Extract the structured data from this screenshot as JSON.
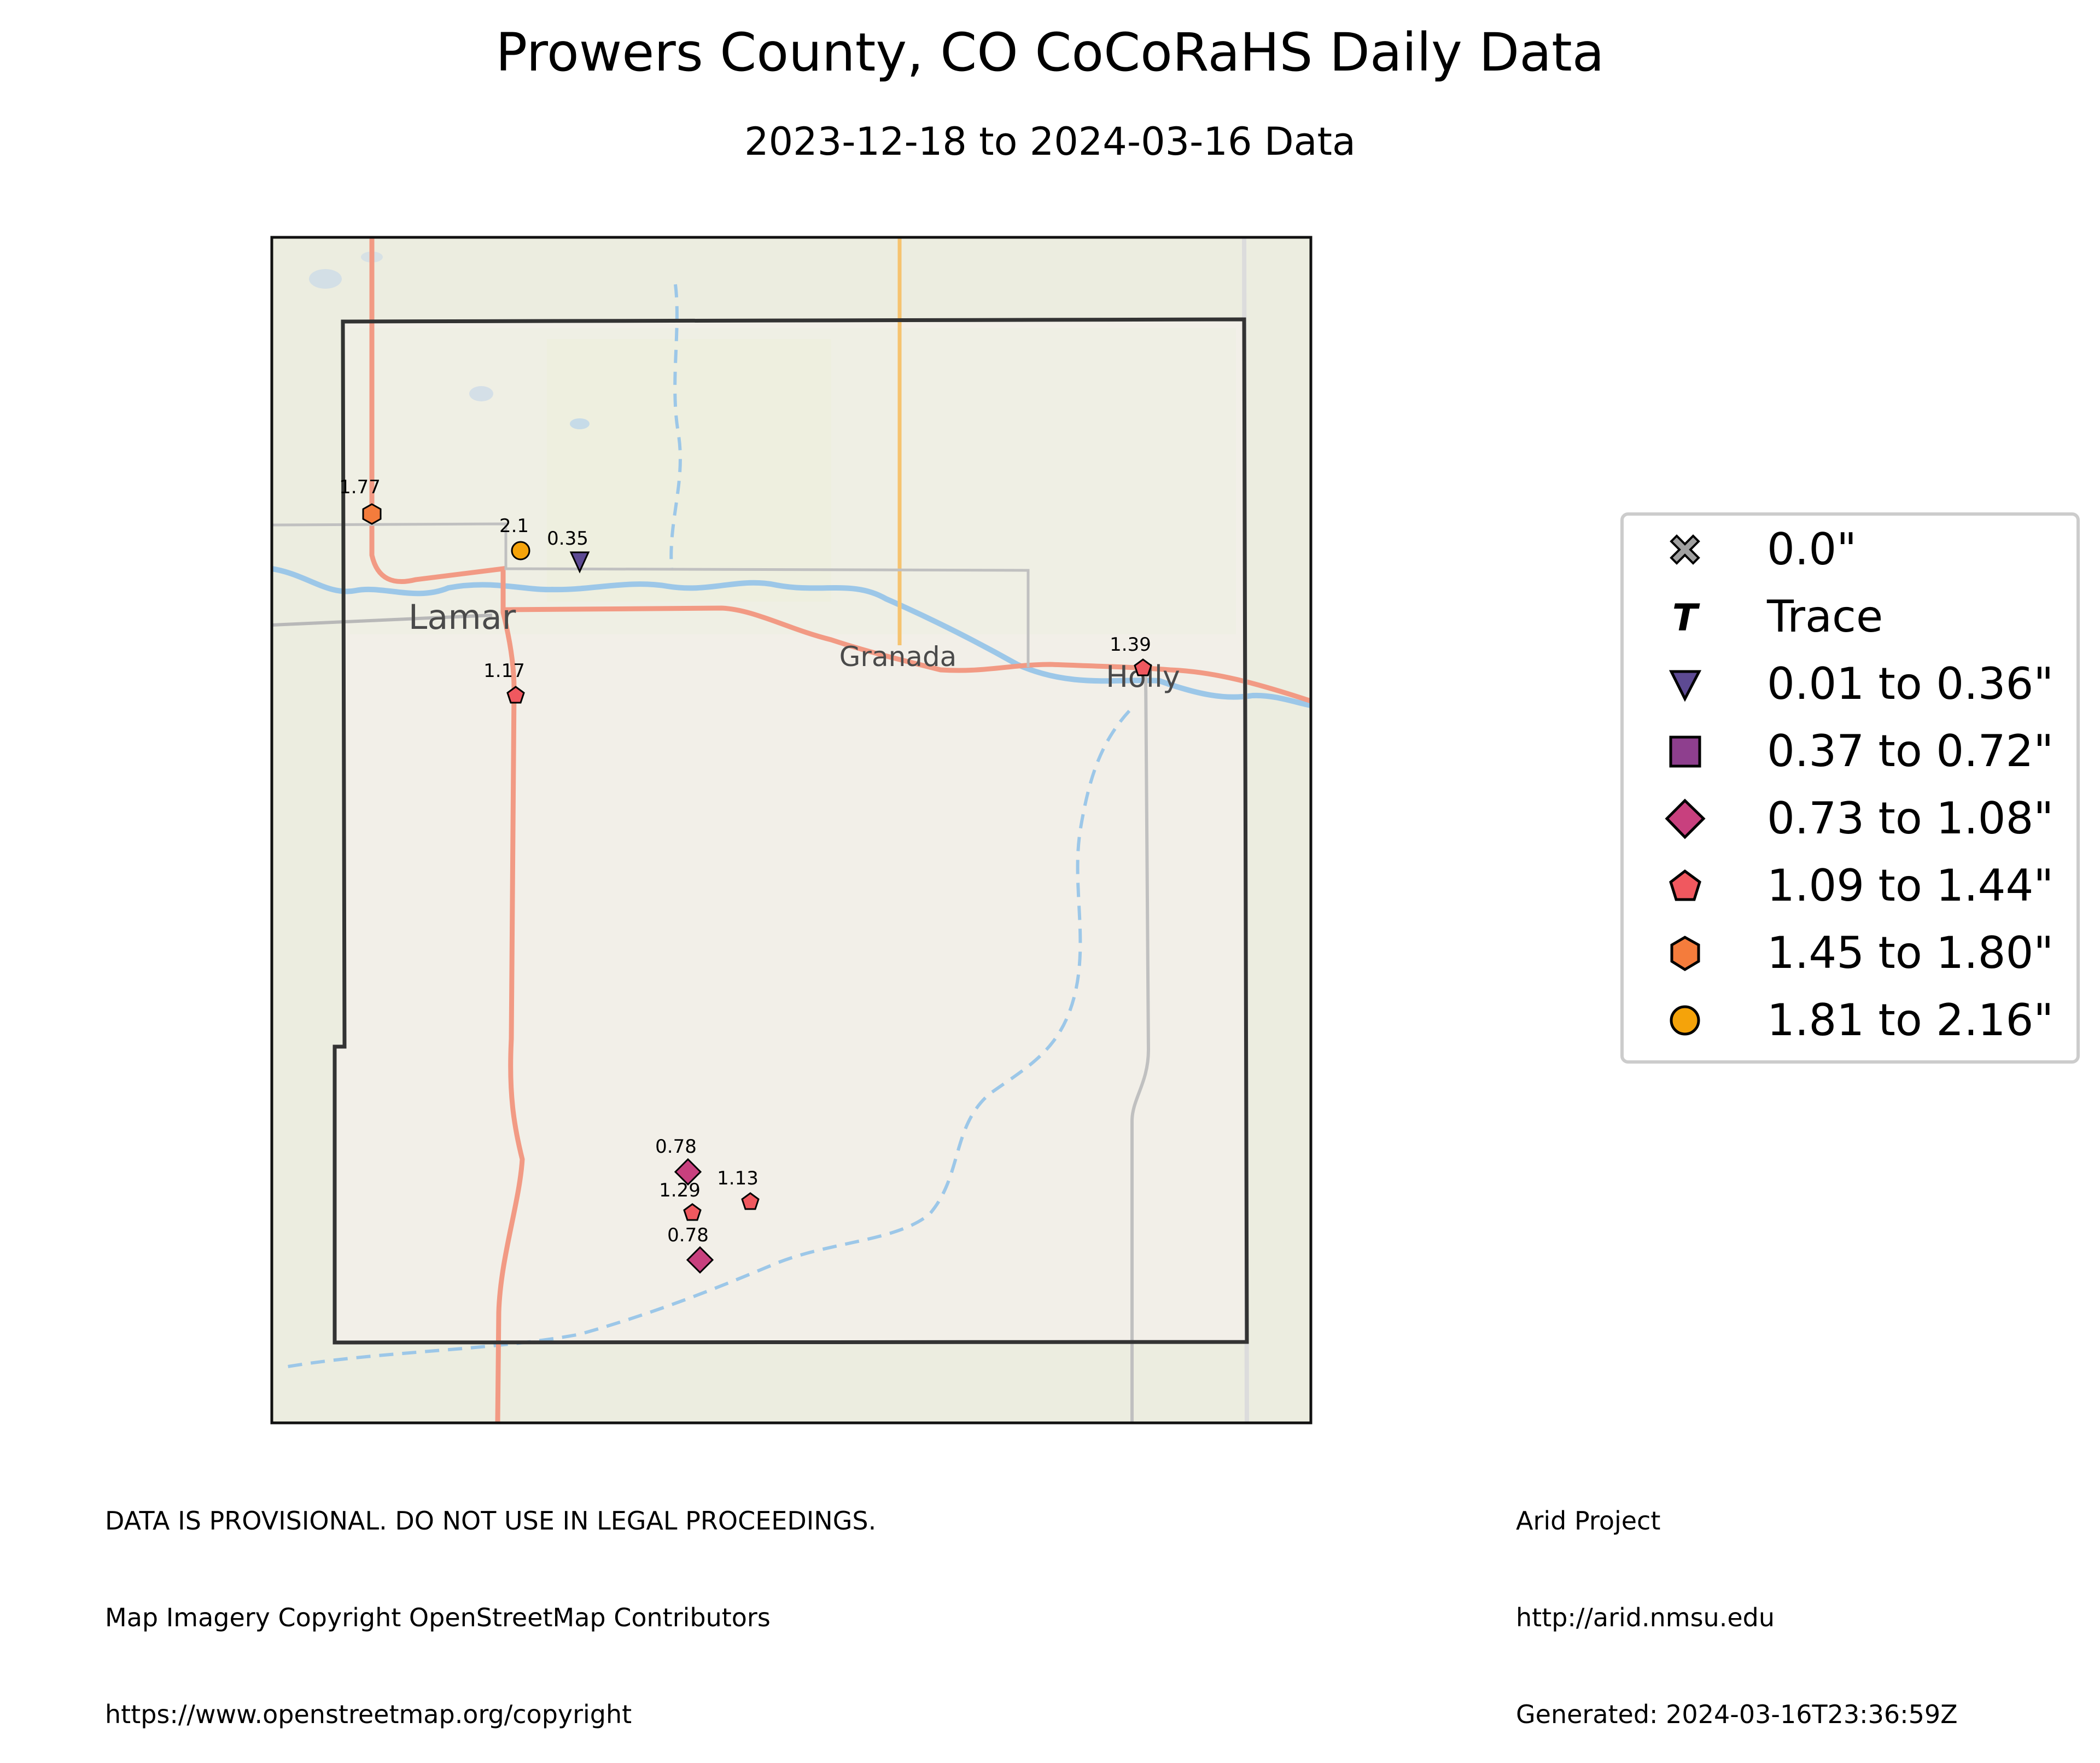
{
  "title": "Prowers County, CO CoCoRaHS Daily Data",
  "subtitle": "2023-12-18 to 2024-03-16 Data",
  "map": {
    "towns": [
      {
        "name": "Lamar",
        "size": "large"
      },
      {
        "name": "Granada",
        "size": "medium"
      },
      {
        "name": "Holly",
        "size": "medium"
      }
    ],
    "stations": [
      {
        "value": "1.77",
        "category": "1.45 to 1.80\""
      },
      {
        "value": "2.1",
        "category": "1.81 to 2.16\""
      },
      {
        "value": "0.35",
        "category": "0.01 to 0.36\""
      },
      {
        "value": "1.17",
        "category": "1.09 to 1.44\""
      },
      {
        "value": "1.39",
        "category": "1.09 to 1.44\""
      },
      {
        "value": "0.78",
        "category": "0.73 to 1.08\""
      },
      {
        "value": "1.29",
        "category": "1.09 to 1.44\""
      },
      {
        "value": "1.13",
        "category": "1.09 to 1.44\""
      },
      {
        "value": "0.78",
        "category": "0.73 to 1.08\""
      }
    ]
  },
  "legend": {
    "items": [
      {
        "label": "0.0\"",
        "symbol": "x",
        "color": "#a0a0a0"
      },
      {
        "label": "Trace",
        "symbol": "T",
        "color": "#000000"
      },
      {
        "label": "0.01 to 0.36\"",
        "symbol": "triangle-down",
        "color": "#5d4a93"
      },
      {
        "label": "0.37 to 0.72\"",
        "symbol": "square",
        "color": "#8e3f8e"
      },
      {
        "label": "0.73 to 1.08\"",
        "symbol": "diamond",
        "color": "#c8407e"
      },
      {
        "label": "1.09 to 1.44\"",
        "symbol": "pentagon",
        "color": "#f0585f"
      },
      {
        "label": "1.45 to 1.80\"",
        "symbol": "hexagon",
        "color": "#f47c3c"
      },
      {
        "label": "1.81 to 2.16\"",
        "symbol": "circle",
        "color": "#f5a30a"
      }
    ]
  },
  "footer": {
    "left": [
      "DATA IS PROVISIONAL. DO NOT USE IN LEGAL PROCEEDINGS.",
      "Map Imagery Copyright OpenStreetMap Contributors",
      "https://www.openstreetmap.org/copyright"
    ],
    "right": [
      "Arid Project",
      "http://arid.nmsu.edu",
      "Generated: 2024-03-16T23:36:59Z"
    ]
  }
}
